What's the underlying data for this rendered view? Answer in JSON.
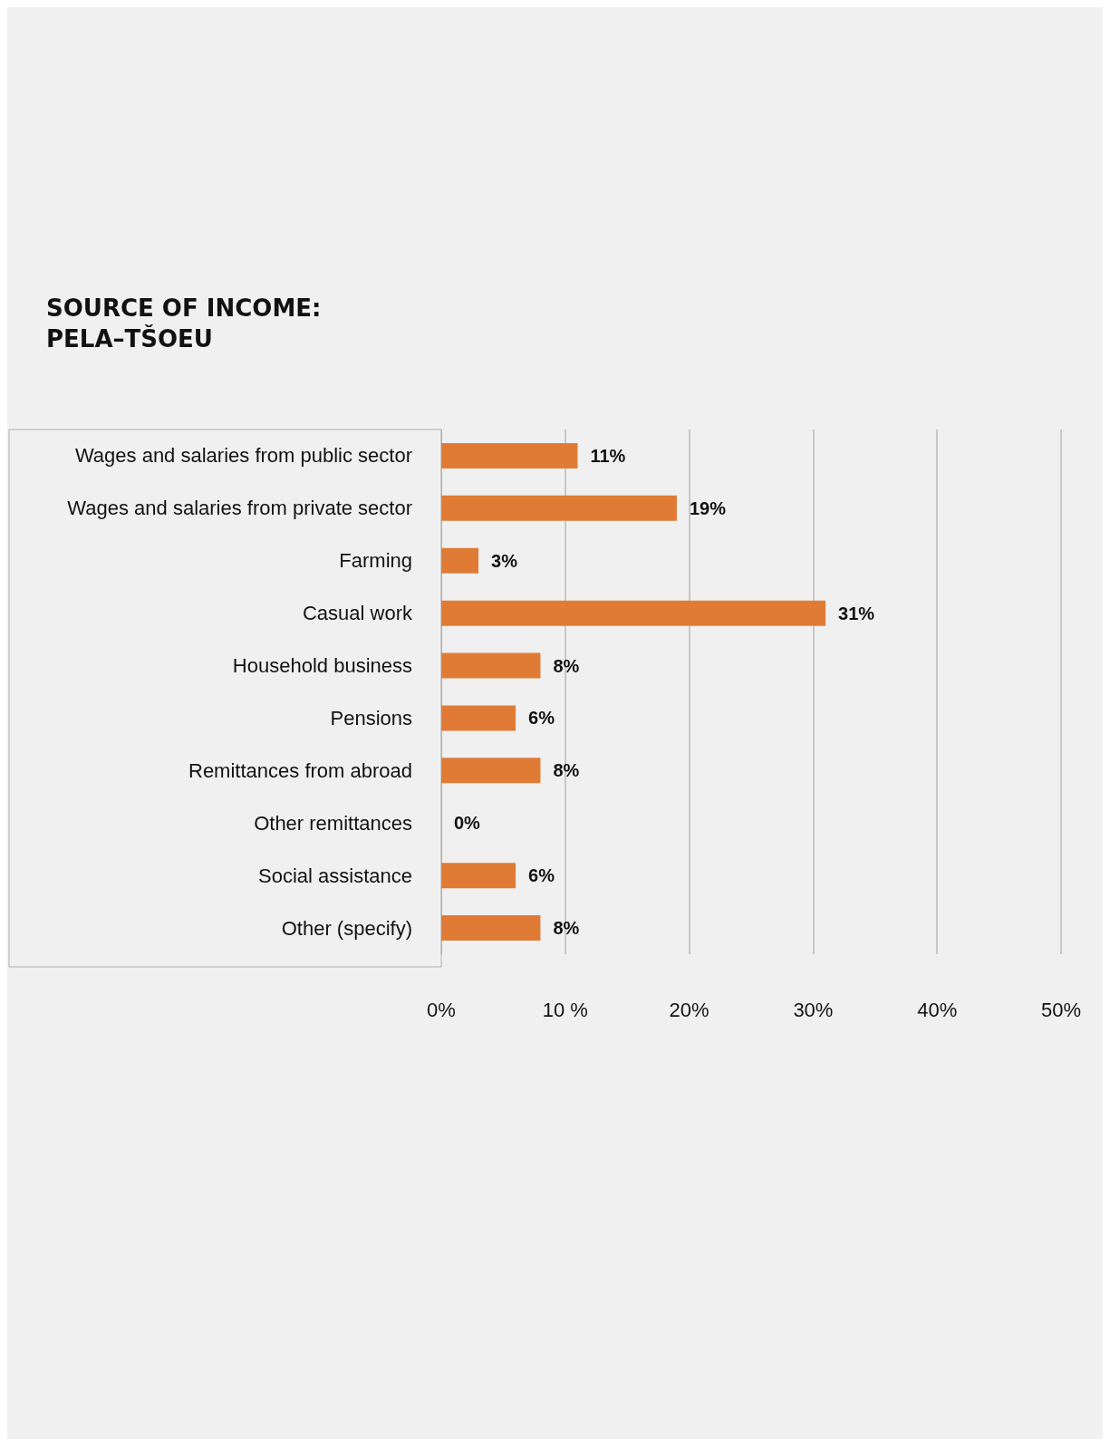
{
  "chart_data": {
    "type": "bar",
    "orientation": "horizontal",
    "title": "SOURCE OF INCOME:\nPELA–TŠOEU",
    "categories": [
      "Wages and salaries from public sector",
      "Wages and salaries from private sector",
      "Farming",
      "Casual work",
      "Household business",
      "Pensions",
      "Remittances from abroad",
      "Other remittances",
      "Social assistance",
      "Other (specify)"
    ],
    "values": [
      11,
      19,
      3,
      31,
      8,
      6,
      8,
      0,
      6,
      8
    ],
    "value_labels": [
      "11%",
      "19%",
      "3%",
      "31%",
      "8%",
      "6%",
      "8%",
      "0%",
      "6%",
      "8%"
    ],
    "color": "#e07b35",
    "xlim": [
      0,
      50
    ],
    "xticks": [
      {
        "value": 0,
        "label": "0%"
      },
      {
        "value": 10,
        "label": "10 %"
      },
      {
        "value": 20,
        "label": "20%"
      },
      {
        "value": 30,
        "label": "30%"
      },
      {
        "value": 40,
        "label": "40%"
      },
      {
        "value": 50,
        "label": "50%"
      }
    ],
    "grid": "x"
  }
}
